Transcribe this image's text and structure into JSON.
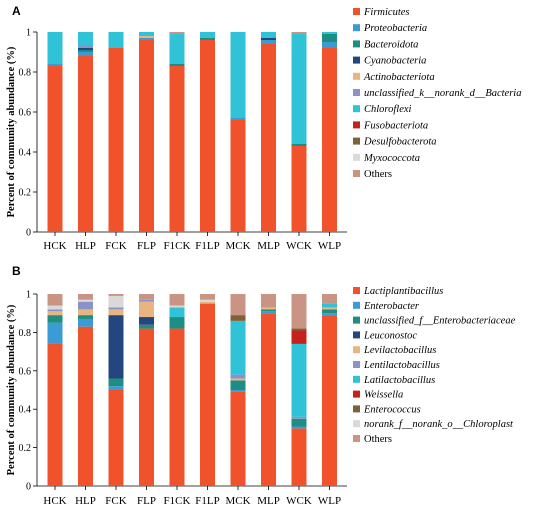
{
  "chart_data": [
    {
      "type": "bar",
      "panel": "A",
      "ylabel": "Percent of community abundance (%)",
      "ylim": [
        0,
        1
      ],
      "yticks": [
        "0",
        "0.2",
        "0.4",
        "0.6",
        "0.8",
        "1"
      ],
      "categories": [
        "HCK",
        "HLP",
        "FCK",
        "FLP",
        "F1CK",
        "F1LP",
        "MCK",
        "MLP",
        "WCK",
        "WLP"
      ],
      "legend_position": "right",
      "series": [
        {
          "name": "Firmicutes",
          "color": "#f0532b",
          "values": [
            0.83,
            0.88,
            0.92,
            0.96,
            0.83,
            0.96,
            0.56,
            0.94,
            0.43,
            0.92
          ]
        },
        {
          "name": "Proteobacteria",
          "color": "#3a9bd5",
          "values": [
            0.01,
            0.02,
            0.0,
            0.01,
            0.0,
            0.0,
            0.01,
            0.02,
            0.0,
            0.03
          ]
        },
        {
          "name": "Bacteroidota",
          "color": "#1c8f82",
          "values": [
            0.0,
            0.01,
            0.0,
            0.0,
            0.01,
            0.01,
            0.0,
            0.0,
            0.01,
            0.04
          ]
        },
        {
          "name": "Cyanobacteria",
          "color": "#23467e",
          "values": [
            0.0,
            0.01,
            0.0,
            0.0,
            0.0,
            0.0,
            0.0,
            0.01,
            0.0,
            0.0
          ]
        },
        {
          "name": "Actinobacteriota",
          "color": "#e8b580",
          "values": [
            0.0,
            0.0,
            0.0,
            0.01,
            0.0,
            0.0,
            0.0,
            0.0,
            0.0,
            0.0
          ]
        },
        {
          "name": "unclassified_k__norank_d__Bacteria",
          "color": "#8a93c9",
          "values": [
            0.0,
            0.01,
            0.0,
            0.0,
            0.0,
            0.0,
            0.0,
            0.0,
            0.0,
            0.0
          ]
        },
        {
          "name": "Chloroflexi",
          "color": "#30c2d6",
          "values": [
            0.16,
            0.07,
            0.08,
            0.02,
            0.15,
            0.03,
            0.43,
            0.03,
            0.55,
            0.01
          ]
        },
        {
          "name": "Fusobacteriota",
          "color": "#c4221b",
          "values": [
            0.0,
            0.0,
            0.0,
            0.0,
            0.0,
            0.0,
            0.0,
            0.0,
            0.0,
            0.0
          ]
        },
        {
          "name": "Desulfobacterota",
          "color": "#7e6138",
          "values": [
            0.0,
            0.0,
            0.0,
            0.0,
            0.0,
            0.0,
            0.0,
            0.0,
            0.0,
            0.0
          ]
        },
        {
          "name": "Myxococcota",
          "color": "#d9d9d9",
          "values": [
            0.0,
            0.0,
            0.0,
            0.0,
            0.0,
            0.0,
            0.0,
            0.0,
            0.0,
            0.0
          ]
        },
        {
          "name": "Others",
          "color": "#c99484",
          "values": [
            0.0,
            0.0,
            0.0,
            0.0,
            0.01,
            0.0,
            0.0,
            0.0,
            0.01,
            0.0
          ]
        }
      ]
    },
    {
      "type": "bar",
      "panel": "B",
      "ylabel": "Percent of community abundance (%)",
      "ylim": [
        0,
        1
      ],
      "yticks": [
        "0",
        "0.2",
        "0.4",
        "0.6",
        "0.8",
        "1"
      ],
      "categories": [
        "HCK",
        "HLP",
        "FCK",
        "FLP",
        "F1CK",
        "F1LP",
        "MCK",
        "MLP",
        "WCK",
        "WLP"
      ],
      "legend_position": "right",
      "series": [
        {
          "name": "Lactiplantibacillus",
          "color": "#f0532b",
          "values": [
            0.74,
            0.83,
            0.5,
            0.82,
            0.82,
            0.95,
            0.49,
            0.9,
            0.3,
            0.89
          ]
        },
        {
          "name": "Enterobacter",
          "color": "#3a9bd5",
          "values": [
            0.11,
            0.04,
            0.02,
            0.0,
            0.0,
            0.0,
            0.01,
            0.01,
            0.01,
            0.01
          ]
        },
        {
          "name": "unclassified_f__Enterobacteriaceae",
          "color": "#1c8f82",
          "values": [
            0.04,
            0.02,
            0.04,
            0.02,
            0.06,
            0.0,
            0.05,
            0.01,
            0.04,
            0.02
          ]
        },
        {
          "name": "Leuconostoc",
          "color": "#23467e",
          "values": [
            0.0,
            0.0,
            0.33,
            0.04,
            0.0,
            0.0,
            0.0,
            0.0,
            0.0,
            0.0
          ]
        },
        {
          "name": "Levilactobacillus",
          "color": "#e8b580",
          "values": [
            0.02,
            0.03,
            0.03,
            0.08,
            0.0,
            0.01,
            0.01,
            0.01,
            0.0,
            0.01
          ]
        },
        {
          "name": "Lentilactobacillus",
          "color": "#8a93c9",
          "values": [
            0.01,
            0.04,
            0.01,
            0.01,
            0.0,
            0.0,
            0.02,
            0.0,
            0.01,
            0.0
          ]
        },
        {
          "name": "Latilactobacillus",
          "color": "#30c2d6",
          "values": [
            0.0,
            0.0,
            0.0,
            0.0,
            0.05,
            0.0,
            0.28,
            0.0,
            0.38,
            0.02
          ]
        },
        {
          "name": "Weissella",
          "color": "#c4221b",
          "values": [
            0.0,
            0.0,
            0.0,
            0.0,
            0.0,
            0.0,
            0.0,
            0.0,
            0.07,
            0.0
          ]
        },
        {
          "name": "Enterococcus",
          "color": "#7e6138",
          "values": [
            0.0,
            0.0,
            0.0,
            0.0,
            0.0,
            0.0,
            0.03,
            0.0,
            0.01,
            0.0
          ]
        },
        {
          "name": "norank_f__norank_o__Chloroplast",
          "color": "#d9d9d9",
          "values": [
            0.02,
            0.01,
            0.06,
            0.0,
            0.01,
            0.01,
            0.0,
            0.0,
            0.0,
            0.0
          ]
        },
        {
          "name": "Others",
          "color": "#c99484",
          "values": [
            0.06,
            0.03,
            0.01,
            0.03,
            0.06,
            0.03,
            0.11,
            0.07,
            0.18,
            0.05
          ]
        }
      ]
    }
  ]
}
